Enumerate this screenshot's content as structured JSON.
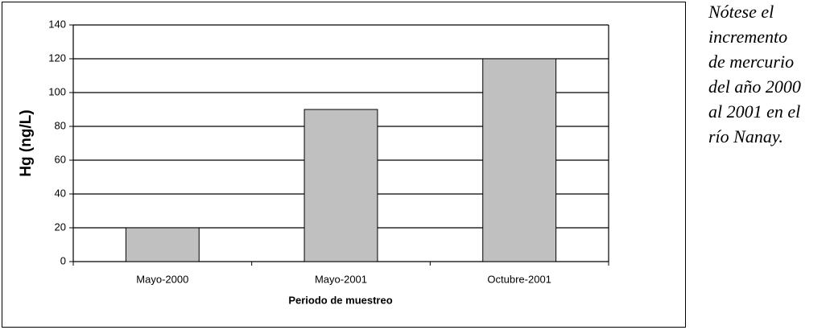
{
  "chart_data": {
    "type": "bar",
    "categories": [
      "Mayo-2000",
      "Mayo-2001",
      "Octubre-2001"
    ],
    "values": [
      20,
      90,
      120
    ],
    "color": "#c0c0c0",
    "x_label": "Periodo de muestreo",
    "y_label": "Hg (ng/L)",
    "ylim": [
      0,
      140
    ],
    "yticks": [
      0,
      20,
      40,
      60,
      80,
      100,
      120,
      140
    ],
    "grid": true,
    "annotation": [
      "Nótese el",
      "incremento",
      "de mercurio",
      "del año 2000",
      "al 2001 en el",
      "río Nanay."
    ]
  }
}
